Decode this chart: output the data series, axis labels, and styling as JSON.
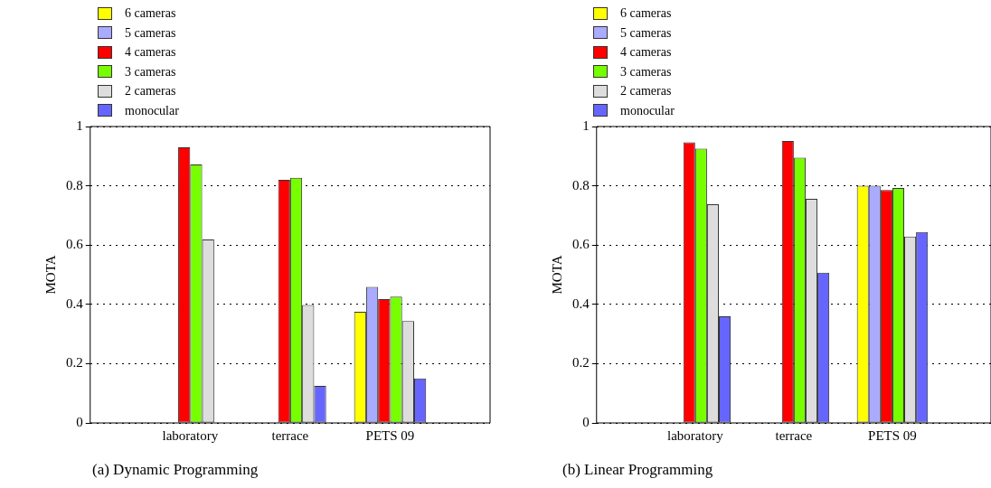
{
  "chart_data": [
    {
      "type": "bar",
      "title": "(a) Dynamic Programming",
      "ylabel": "MOTA",
      "categories": [
        "laboratory",
        "terrace",
        "PETS 09"
      ],
      "ylim": [
        0,
        1
      ],
      "yticks": [
        0,
        0.2,
        0.4,
        0.6,
        0.8,
        1
      ],
      "grid": "y",
      "legend": "top left",
      "series": [
        {
          "name": "6 cameras",
          "color": "#ffff00",
          "values": [
            null,
            null,
            0.375
          ]
        },
        {
          "name": "5 cameras",
          "color": "#aaaaff",
          "values": [
            null,
            null,
            0.459
          ]
        },
        {
          "name": "4 cameras",
          "color": "#ff0000",
          "values": [
            0.93,
            0.82,
            0.418
          ]
        },
        {
          "name": "3 cameras",
          "color": "#77ff00",
          "values": [
            0.872,
            0.827,
            0.426
          ]
        },
        {
          "name": "2 cameras",
          "color": "#dddddd",
          "values": [
            0.619,
            0.398,
            0.344
          ]
        },
        {
          "name": "monocular",
          "color": "#6666ff",
          "values": [
            0,
            0.125,
            0.15
          ]
        }
      ]
    },
    {
      "type": "bar",
      "title": "(b) Linear Programming",
      "ylabel": "MOTA",
      "categories": [
        "laboratory",
        "terrace",
        "PETS 09"
      ],
      "ylim": [
        0,
        1
      ],
      "yticks": [
        0,
        0.2,
        0.4,
        0.6,
        0.8,
        1
      ],
      "grid": "y",
      "legend": "top left",
      "series": [
        {
          "name": "6 cameras",
          "color": "#ffff00",
          "values": [
            null,
            null,
            0.8
          ]
        },
        {
          "name": "5 cameras",
          "color": "#aaaaff",
          "values": [
            null,
            null,
            0.8
          ]
        },
        {
          "name": "4 cameras",
          "color": "#ff0000",
          "values": [
            0.947,
            0.951,
            0.786
          ]
        },
        {
          "name": "3 cameras",
          "color": "#77ff00",
          "values": [
            0.925,
            0.895,
            0.793
          ]
        },
        {
          "name": "2 cameras",
          "color": "#dddddd",
          "values": [
            0.738,
            0.756,
            0.629
          ]
        },
        {
          "name": "monocular",
          "color": "#6666ff",
          "values": [
            0.36,
            0.507,
            0.644
          ]
        }
      ]
    }
  ]
}
